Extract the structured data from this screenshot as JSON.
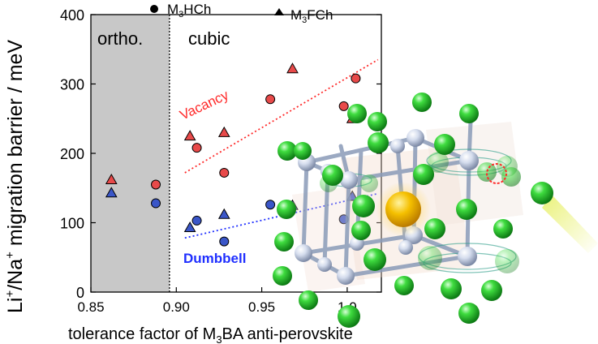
{
  "chart_data": {
    "type": "scatter",
    "ylabel_parts": [
      "Li",
      "+",
      "/Na",
      "+",
      " migration barrier / meV"
    ],
    "xlabel_parts": [
      "tolerance factor of M",
      "3",
      "BA anti-perovskite"
    ],
    "xlim": [
      0.85,
      1.02
    ],
    "ylim": [
      0,
      400
    ],
    "x_ticks": [
      0.85,
      0.9,
      0.95,
      1.0
    ],
    "x_tick_labels": [
      "0.85",
      "0.90",
      "0.95",
      "1.0"
    ],
    "y_ticks": [
      0,
      100,
      200,
      300,
      400
    ],
    "y_tick_labels": [
      "0",
      "100",
      "200",
      "300",
      "400"
    ],
    "legend": [
      {
        "marker": "circle",
        "parts": [
          "M",
          "3",
          "HCh"
        ]
      },
      {
        "marker": "triangle",
        "parts": [
          "M",
          "3",
          "FCh"
        ]
      }
    ],
    "regions": [
      {
        "label": "ortho.",
        "from": 0.85,
        "to": 0.896,
        "color": "#c8c8c8"
      },
      {
        "label": "cubic",
        "from": 0.896,
        "to": 1.02,
        "color": "#ffffff"
      }
    ],
    "series": [
      {
        "name": "Vacancy",
        "color": "#ff2a2a",
        "fill": "#e84a4a",
        "circles": [
          [
            0.888,
            155
          ],
          [
            0.912,
            208
          ],
          [
            0.928,
            172
          ],
          [
            0.955,
            278
          ],
          [
            0.998,
            268
          ],
          [
            1.005,
            308
          ]
        ],
        "triangles": [
          [
            0.862,
            162
          ],
          [
            0.908,
            225
          ],
          [
            0.928,
            230
          ],
          [
            0.968,
            322
          ],
          [
            1.003,
            250
          ]
        ],
        "trend": [
          [
            0.905,
            172
          ],
          [
            1.018,
            335
          ]
        ]
      },
      {
        "name": "Dumbbell",
        "color": "#1f2fff",
        "fill": "#3a56c8",
        "circles": [
          [
            0.888,
            128
          ],
          [
            0.912,
            103
          ],
          [
            0.928,
            73
          ],
          [
            0.955,
            126
          ],
          [
            0.998,
            105
          ]
        ],
        "triangles": [
          [
            0.862,
            143
          ],
          [
            0.908,
            93
          ],
          [
            0.928,
            112
          ],
          [
            0.968,
            125
          ],
          [
            1.003,
            138
          ]
        ],
        "trend": [
          [
            0.905,
            78
          ],
          [
            1.018,
            142
          ]
        ]
      }
    ]
  },
  "colors": {
    "ortho_shade": "#c8c8c8",
    "vacancy": "#ff2a2a",
    "dumbbell": "#1f2fff",
    "atom_green": "#22bb22",
    "atom_silver": "#c9d3e6",
    "atom_gold": "#f2b800"
  }
}
